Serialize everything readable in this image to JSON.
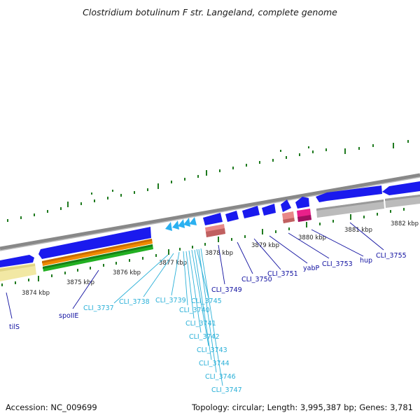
{
  "title": "Clostridium botulinum F str. Langeland, complete genome",
  "footer": {
    "accession": "Accession: NC_009699",
    "summary": "Topology: circular; Length: 3,995,387 bp; Genes: 3,781"
  },
  "scale_labels": [
    "3874 kbp",
    "3875 kbp",
    "3876 kbp",
    "3877 kbp",
    "3878 kbp",
    "3879 kbp",
    "3880 kbp",
    "3881 kbp",
    "3882 kbp"
  ],
  "genes": [
    {
      "name": "tilS",
      "color": "#1010a0"
    },
    {
      "name": "spoIIE",
      "color": "#1010a0"
    },
    {
      "name": "CLI_3737",
      "color": "#2ab0d8"
    },
    {
      "name": "CLI_3738",
      "color": "#2ab0d8"
    },
    {
      "name": "CLI_3739",
      "color": "#2ab0d8"
    },
    {
      "name": "CLI_3740",
      "color": "#2ab0d8"
    },
    {
      "name": "CLI_3741",
      "color": "#2ab0d8"
    },
    {
      "name": "CLI_3742",
      "color": "#2ab0d8"
    },
    {
      "name": "CLI_3743",
      "color": "#2ab0d8"
    },
    {
      "name": "CLI_3744",
      "color": "#2ab0d8"
    },
    {
      "name": "CLI_3745",
      "color": "#2ab0d8"
    },
    {
      "name": "CLI_3746",
      "color": "#2ab0d8"
    },
    {
      "name": "CLI_3747",
      "color": "#2ab0d8"
    },
    {
      "name": "CLI_3749",
      "color": "#1010a0"
    },
    {
      "name": "CLI_3750",
      "color": "#1010a0"
    },
    {
      "name": "CLI_3751",
      "color": "#1010a0"
    },
    {
      "name": "yabP",
      "color": "#1010a0"
    },
    {
      "name": "CLI_3753",
      "color": "#1010a0"
    },
    {
      "name": "hup",
      "color": "#1010a0"
    },
    {
      "name": "CLI_3755",
      "color": "#1010a0"
    }
  ],
  "colors": {
    "backbone": "#888888",
    "cds_forward": "#1a1aee",
    "cds_reverse": "#2ab0f0",
    "orange_track": "#f08a00",
    "green_track": "#22b022",
    "pale_track": "#f2e8a4",
    "gray_track": "#bbbbbb",
    "salmon_track": "#e88888",
    "magenta_track": "#e8208a",
    "tick": "#1f7a1f"
  }
}
